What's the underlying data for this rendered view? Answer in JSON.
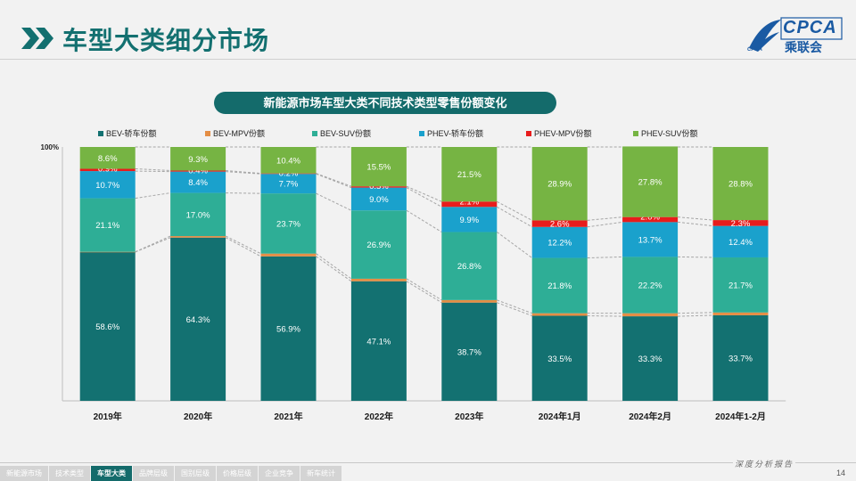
{
  "header": {
    "title": "车型大类细分市场"
  },
  "logo": {
    "text": "CPCA",
    "sub": "乘联会",
    "mini": "CPCA"
  },
  "chart_title": "新能源市场车型大类不同技术类型零售份额变化",
  "chart_data": {
    "type": "bar",
    "stacked": true,
    "normalized_100": true,
    "ylim": [
      0,
      100
    ],
    "y_tick_labels": [
      "100%"
    ],
    "categories": [
      "2019年",
      "2020年",
      "2021年",
      "2022年",
      "2023年",
      "2024年1月",
      "2024年2月",
      "2024年1-2月"
    ],
    "series": [
      {
        "name": "BEV-轿车份额",
        "color": "#137171",
        "values": [
          58.6,
          64.3,
          56.9,
          47.1,
          38.7,
          33.5,
          33.3,
          33.7
        ],
        "labels": [
          "58.6%",
          "64.3%",
          "56.9%",
          "47.1%",
          "38.7%",
          "33.5%",
          "33.3%",
          "33.7%"
        ]
      },
      {
        "name": "BEV-MPV份额",
        "color": "#e48e45",
        "values": [
          0.1,
          0.6,
          1.1,
          1.0,
          1.0,
          1.0,
          1.2,
          1.1
        ],
        "labels": [
          "0.1%",
          "0.6%",
          "1.1%",
          "1.0%",
          "1.0%",
          "1.0%",
          "1.2%",
          "1.1%"
        ]
      },
      {
        "name": "BEV-SUV份额",
        "color": "#2eae96",
        "values": [
          21.1,
          17.0,
          23.7,
          26.9,
          26.8,
          21.8,
          22.2,
          21.7
        ],
        "labels": [
          "21.1%",
          "17.0%",
          "23.7%",
          "26.9%",
          "26.8%",
          "21.8%",
          "22.2%",
          "21.7%"
        ]
      },
      {
        "name": "PHEV-轿车份额",
        "color": "#1aa1cc",
        "values": [
          10.7,
          8.4,
          7.7,
          9.0,
          9.9,
          12.2,
          13.7,
          12.4
        ],
        "labels": [
          "10.7%",
          "8.4%",
          "7.7%",
          "9.0%",
          "9.9%",
          "12.2%",
          "13.7%",
          "12.4%"
        ]
      },
      {
        "name": "PHEV-MPV份额",
        "color": "#e81c1c",
        "values": [
          0.9,
          0.4,
          0.2,
          0.5,
          2.1,
          2.6,
          2.0,
          2.3
        ],
        "labels": [
          "0.9%",
          "0.4%",
          "0.2%",
          "0.5%",
          "2.1%",
          "2.6%",
          "2.0%",
          "2.3%"
        ]
      },
      {
        "name": "PHEV-SUV份额",
        "color": "#76b443",
        "values": [
          8.6,
          9.3,
          10.4,
          15.5,
          21.5,
          28.9,
          27.8,
          28.8
        ],
        "labels": [
          "8.6%",
          "9.3%",
          "10.4%",
          "15.5%",
          "21.5%",
          "28.9%",
          "27.8%",
          "28.8%"
        ]
      }
    ],
    "connector_lines": "dashed",
    "legend_position": "top"
  },
  "footer": {
    "slogan": "深度分析报告",
    "page": "14",
    "nav": [
      {
        "label": "新能源市场",
        "active": false
      },
      {
        "label": "技术类型",
        "active": false
      },
      {
        "label": "车型大类",
        "active": true
      },
      {
        "label": "品牌层级",
        "active": false
      },
      {
        "label": "国别层级",
        "active": false
      },
      {
        "label": "价格层级",
        "active": false
      },
      {
        "label": "企业竞争",
        "active": false
      },
      {
        "label": "新车统计",
        "active": false
      }
    ]
  }
}
